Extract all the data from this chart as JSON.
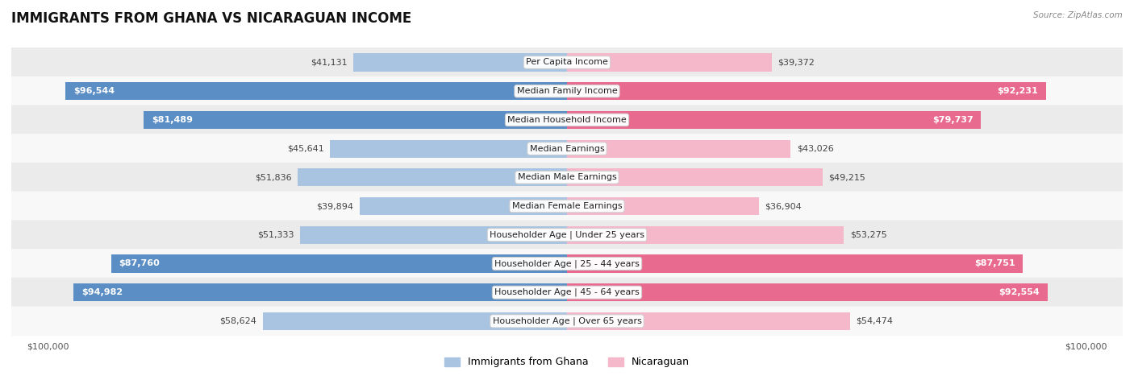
{
  "title": "IMMIGRANTS FROM GHANA VS NICARAGUAN INCOME",
  "source": "Source: ZipAtlas.com",
  "categories": [
    "Per Capita Income",
    "Median Family Income",
    "Median Household Income",
    "Median Earnings",
    "Median Male Earnings",
    "Median Female Earnings",
    "Householder Age | Under 25 years",
    "Householder Age | 25 - 44 years",
    "Householder Age | 45 - 64 years",
    "Householder Age | Over 65 years"
  ],
  "ghana_values": [
    41131,
    96544,
    81489,
    45641,
    51836,
    39894,
    51333,
    87760,
    94982,
    58624
  ],
  "nicaraguan_values": [
    39372,
    92231,
    79737,
    43026,
    49215,
    36904,
    53275,
    87751,
    92554,
    54474
  ],
  "ghana_labels": [
    "$41,131",
    "$96,544",
    "$81,489",
    "$45,641",
    "$51,836",
    "$39,894",
    "$51,333",
    "$87,760",
    "$94,982",
    "$58,624"
  ],
  "nicaraguan_labels": [
    "$39,372",
    "$92,231",
    "$79,737",
    "$43,026",
    "$49,215",
    "$36,904",
    "$53,275",
    "$87,751",
    "$92,554",
    "$54,474"
  ],
  "ghana_color_light": "#a8c4e0",
  "ghana_color_dark": "#5b8ec4",
  "nicaraguan_color_light": "#f5b8cb",
  "nicaraguan_color_dark": "#e96a8f",
  "max_value": 100000,
  "bar_height": 0.62,
  "row_bg_even": "#ebebeb",
  "row_bg_odd": "#f8f8f8",
  "bg_color": "#ffffff",
  "title_fontsize": 12,
  "label_fontsize": 8,
  "category_fontsize": 8,
  "axis_fontsize": 8,
  "legend_fontsize": 9,
  "label_threshold": 70000
}
